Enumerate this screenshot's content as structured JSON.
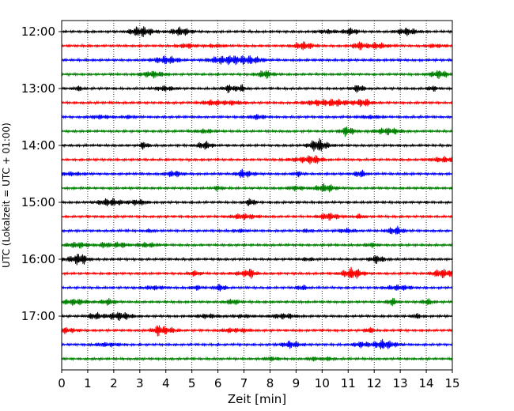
{
  "chart_data": {
    "type": "line",
    "xlabel": "Zeit  [min]",
    "ylabel": "UTC (Lokalzeit = UTC + 01:00)",
    "xlim": [
      0,
      15
    ],
    "x_ticks": [
      "0",
      "1",
      "2",
      "3",
      "4",
      "5",
      "6",
      "7",
      "8",
      "9",
      "10",
      "11",
      "12",
      "13",
      "14",
      "15"
    ],
    "y_ticks": [
      "12:00",
      "13:00",
      "14:00",
      "15:00",
      "16:00",
      "17:00"
    ],
    "trace_start": "12:00",
    "trace_interval_min": 15,
    "trace_count": 24,
    "trace_colors": [
      "#000000",
      "#ff0000",
      "#0000ff",
      "#008000"
    ],
    "grid_x": "dotted",
    "series_description": "seismogram helicorder, one 15-minute trace per row"
  }
}
